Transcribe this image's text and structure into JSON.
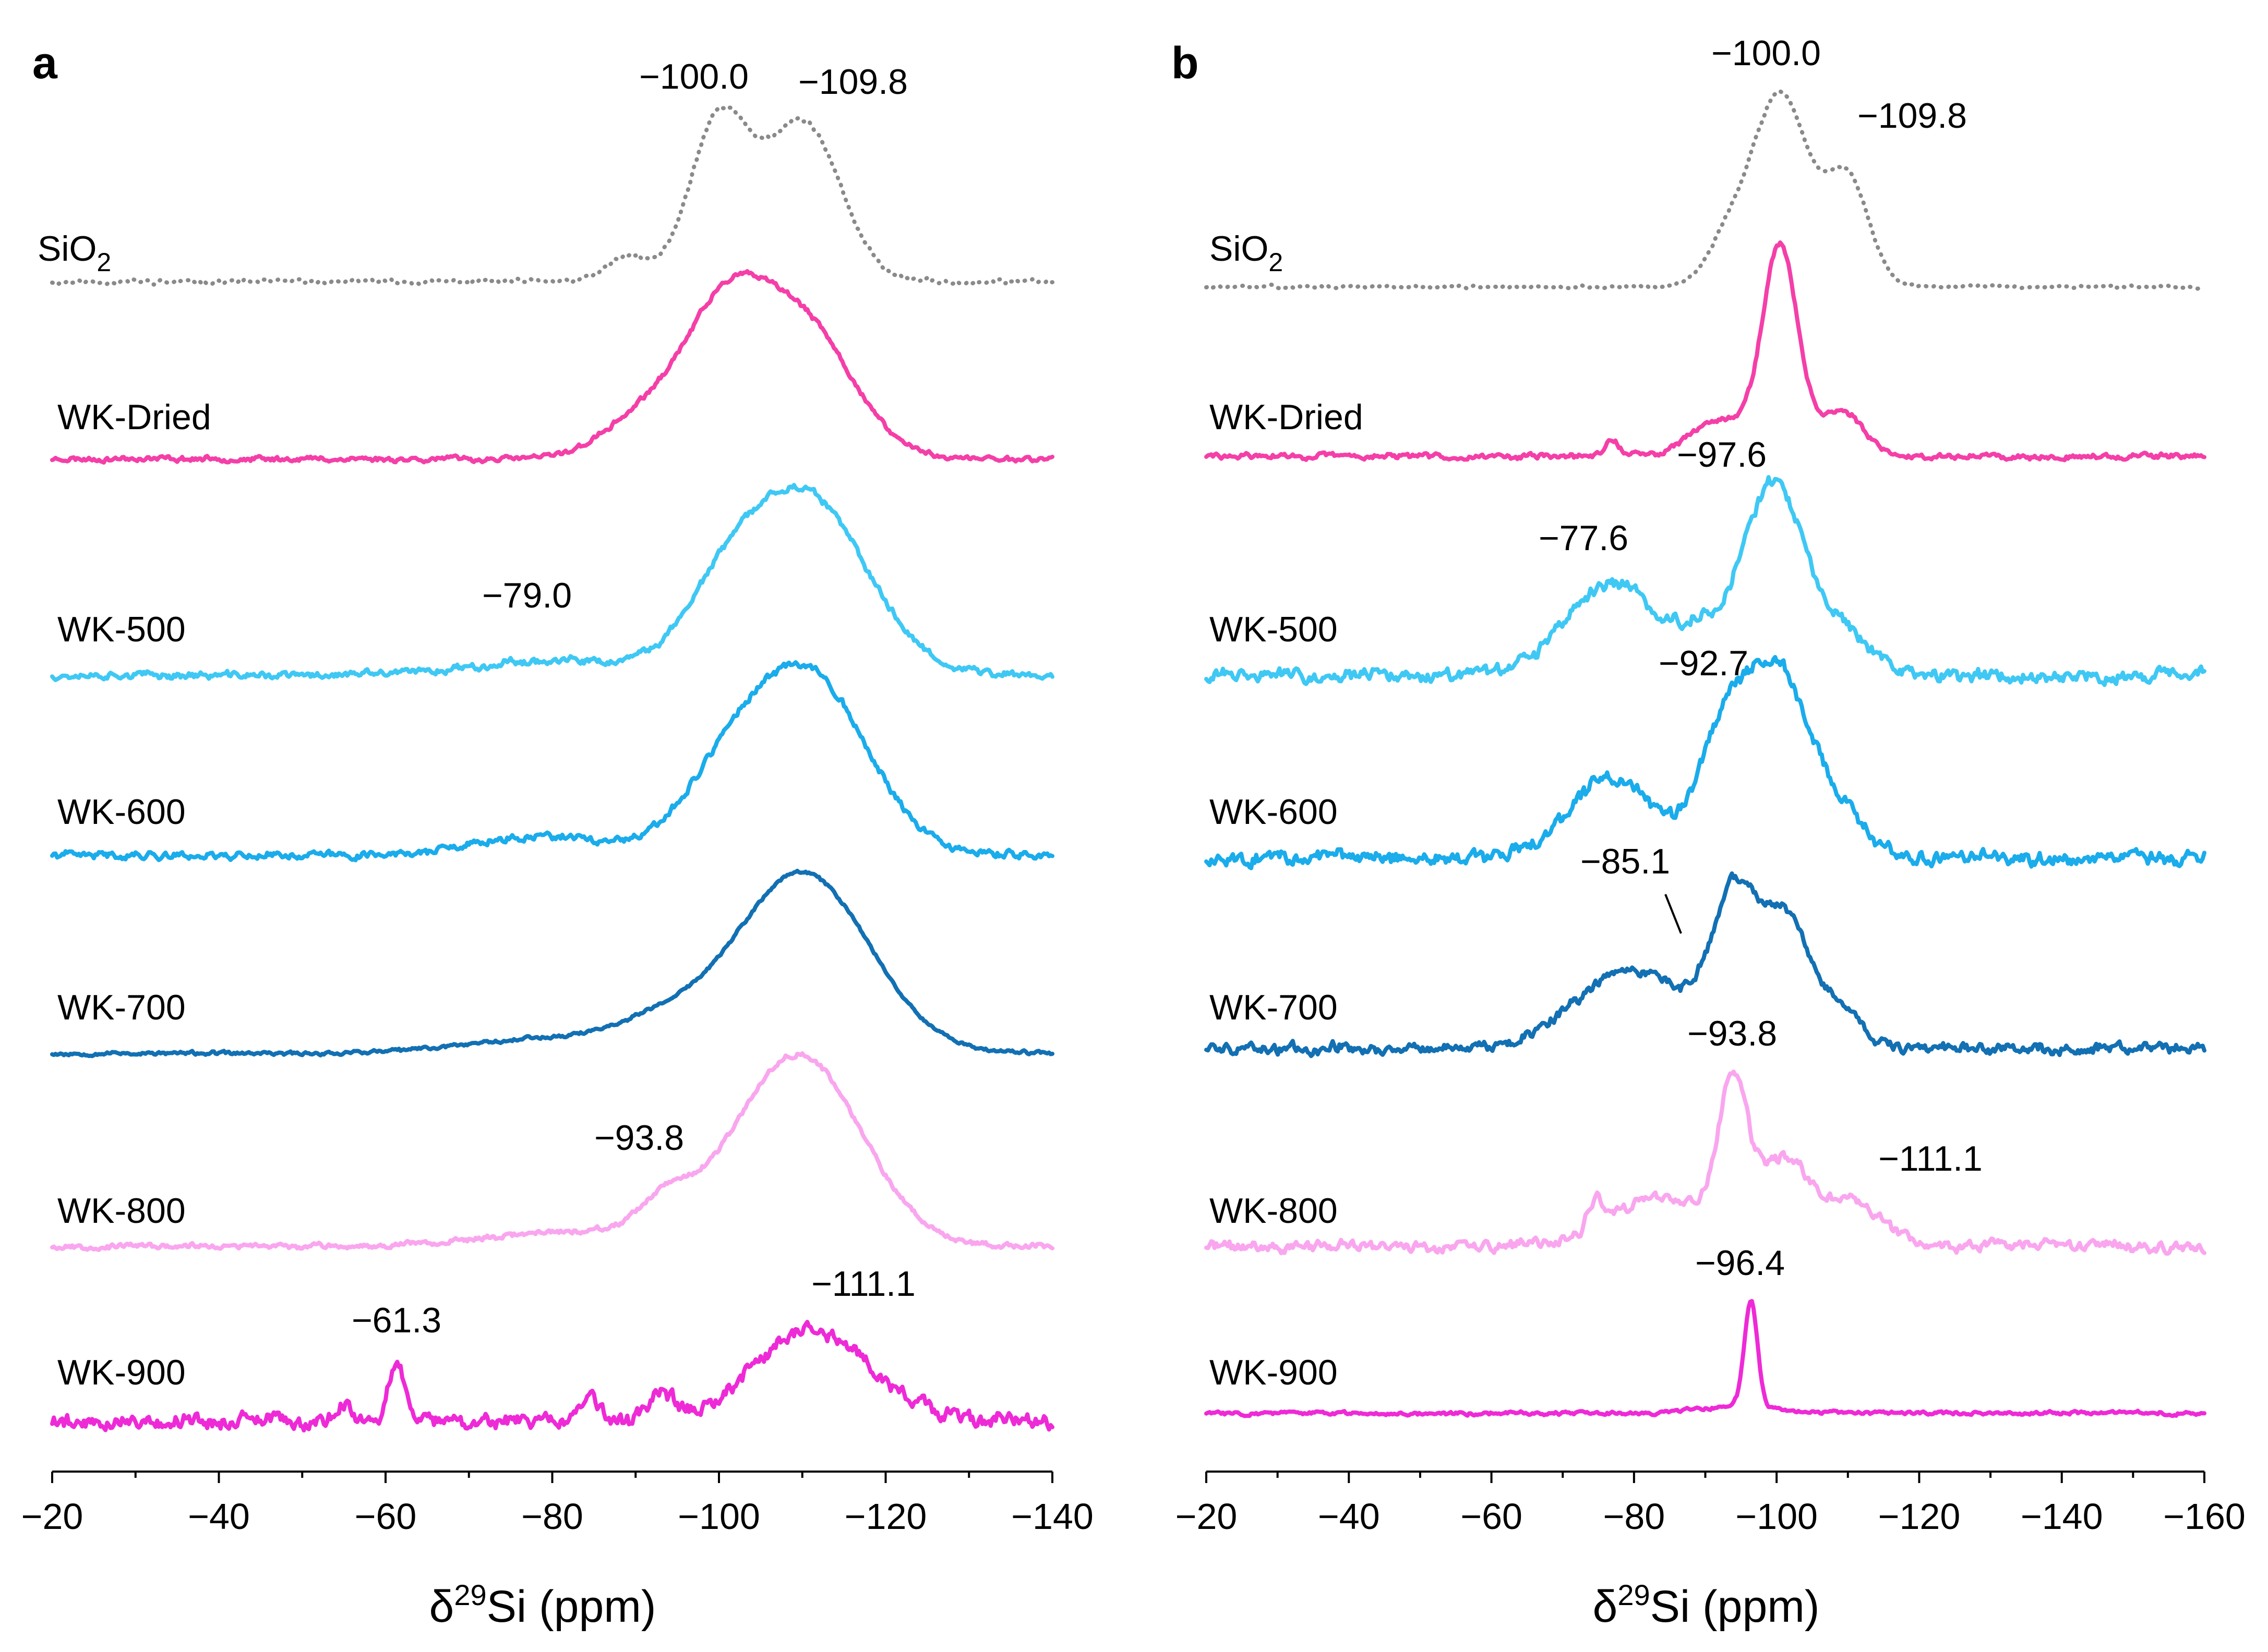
{
  "chart_data": [
    {
      "panel": "a",
      "type": "line",
      "xlabel": "δ29Si (ppm)",
      "xlim": [
        -20,
        -140
      ],
      "ticks": [
        -20,
        -40,
        -60,
        -80,
        -100,
        -120,
        -140
      ],
      "tick_labels": [
        "−20",
        "−40",
        "−60",
        "−80",
        "−100",
        "−120",
        "−140"
      ],
      "series": [
        {
          "name": "SiO2",
          "label_main": "SiO",
          "label_sub": "2",
          "color": "#8a8a8a",
          "style": "dotted",
          "peaks": [
            {
              "c": -100.0,
              "w": 3.5,
              "a": 1.0
            },
            {
              "c": -110.0,
              "w": 4.5,
              "a": 1.0
            },
            {
              "c": -89.0,
              "w": 2.5,
              "a": 0.15
            }
          ],
          "noise": 0.02,
          "seed": 11
        },
        {
          "name": "WK-Dried",
          "label_main": "WK-Dried",
          "color": "#f43fa8",
          "style": "solid",
          "peaks": [
            {
              "c": -100.5,
              "w": 5.0,
              "a": 1.0
            },
            {
              "c": -110.0,
              "w": 6.0,
              "a": 1.0
            },
            {
              "c": -91.0,
              "w": 5.0,
              "a": 0.3
            }
          ],
          "noise": 0.03,
          "seed": 23
        },
        {
          "name": "WK-500",
          "label_main": "WK-500",
          "color": "#3fc8f4",
          "style": "solid",
          "peaks": [
            {
              "c": -110.0,
              "w": 7.5,
              "a": 1.0
            },
            {
              "c": -100.0,
              "w": 5.0,
              "a": 0.25
            },
            {
              "c": -79.0,
              "w": 9.0,
              "a": 0.08
            }
          ],
          "noise": 0.03,
          "seed": 37
        },
        {
          "name": "WK-600",
          "label_main": "WK-600",
          "color": "#1aaceb",
          "style": "solid",
          "peaks": [
            {
              "c": -110.5,
              "w": 7.0,
              "a": 1.0
            },
            {
              "c": -100.0,
              "w": 5.0,
              "a": 0.3
            },
            {
              "c": -79.0,
              "w": 8.0,
              "a": 0.1
            }
          ],
          "noise": 0.03,
          "seed": 41
        },
        {
          "name": "WK-700",
          "label_main": "WK-700",
          "color": "#1270b3",
          "style": "solid",
          "peaks": [
            {
              "c": -110.0,
              "w": 8.0,
              "a": 1.0
            },
            {
              "c": -93.0,
              "w": 6.0,
              "a": 0.15
            },
            {
              "c": -78.0,
              "w": 9.0,
              "a": 0.08
            }
          ],
          "noise": 0.015,
          "seed": 53
        },
        {
          "name": "WK-800",
          "label_main": "WK-800",
          "color": "#f9a6ef",
          "style": "solid",
          "peaks": [
            {
              "c": -109.5,
              "w": 7.5,
              "a": 1.0
            },
            {
              "c": -93.8,
              "w": 3.0,
              "a": 0.15
            },
            {
              "c": -85.0,
              "w": 12.0,
              "a": 0.08
            }
          ],
          "noise": 0.02,
          "seed": 67
        },
        {
          "name": "WK-900",
          "label_main": "WK-900",
          "color": "#ee2ad7",
          "style": "solid",
          "peaks": [
            {
              "c": -111.1,
              "w": 7.0,
              "a": 0.55
            },
            {
              "c": -61.3,
              "w": 1.0,
              "a": 0.35
            },
            {
              "c": -93.0,
              "w": 1.3,
              "a": 0.15
            },
            {
              "c": -84.5,
              "w": 1.3,
              "a": 0.12
            },
            {
              "c": -55.0,
              "w": 1.0,
              "a": 0.1
            }
          ],
          "noise": 0.07,
          "seed": 79
        }
      ],
      "peak_labels": [
        "−100.0",
        "−109.8",
        "−79.0",
        "−93.8",
        "−61.3",
        "−111.1"
      ]
    },
    {
      "panel": "b",
      "type": "line",
      "xlabel": "δ29Si (ppm)",
      "xlim": [
        -20,
        -160
      ],
      "ticks": [
        -20,
        -40,
        -60,
        -80,
        -100,
        -120,
        -140,
        -160
      ],
      "tick_labels": [
        "−20",
        "−40",
        "−60",
        "−80",
        "−100",
        "−120",
        "−140",
        "−160"
      ],
      "series": [
        {
          "name": "SiO2",
          "label_main": "SiO",
          "label_sub": "2",
          "color": "#8a8a8a",
          "style": "dotted",
          "peaks": [
            {
              "c": -100.5,
              "w": 4.0,
              "a": 1.0
            },
            {
              "c": -110.0,
              "w": 3.0,
              "a": 0.55
            },
            {
              "c": -93.0,
              "w": 3.0,
              "a": 0.2
            }
          ],
          "noise": 0.01,
          "seed": 13
        },
        {
          "name": "WK-Dried",
          "label_main": "WK-Dried",
          "color": "#f43fa8",
          "style": "solid",
          "peaks": [
            {
              "c": -100.5,
              "w": 2.5,
              "a": 1.0
            },
            {
              "c": -92.0,
              "w": 4.0,
              "a": 0.18
            },
            {
              "c": -109.0,
              "w": 3.0,
              "a": 0.22
            },
            {
              "c": -77.0,
              "w": 1.0,
              "a": 0.08
            }
          ],
          "noise": 0.02,
          "seed": 29
        },
        {
          "name": "WK-500",
          "label_main": "WK-500",
          "color": "#3fc8f4",
          "style": "solid",
          "peaks": [
            {
              "c": -99.5,
              "w": 4.5,
              "a": 1.0
            },
            {
              "c": -77.0,
              "w": 6.5,
              "a": 0.48
            },
            {
              "c": -89.0,
              "w": 3.0,
              "a": 0.15
            },
            {
              "c": -110.0,
              "w": 3.5,
              "a": 0.2
            }
          ],
          "noise": 0.05,
          "seed": 31
        },
        {
          "name": "WK-600",
          "label_main": "WK-600",
          "color": "#1aaceb",
          "style": "solid",
          "peaks": [
            {
              "c": -100.0,
              "w": 4.0,
              "a": 1.0
            },
            {
              "c": -92.7,
              "w": 3.5,
              "a": 0.7
            },
            {
              "c": -77.0,
              "w": 6.0,
              "a": 0.45
            },
            {
              "c": -108.0,
              "w": 4.0,
              "a": 0.3
            }
          ],
          "noise": 0.06,
          "seed": 43
        },
        {
          "name": "WK-700",
          "label_main": "WK-700",
          "color": "#1270b3",
          "style": "solid",
          "peaks": [
            {
              "c": -94.0,
              "w": 3.0,
              "a": 1.0
            },
            {
              "c": -101.0,
              "w": 3.5,
              "a": 0.95
            },
            {
              "c": -80.0,
              "w": 8.0,
              "a": 0.6
            },
            {
              "c": -109.0,
              "w": 3.0,
              "a": 0.3
            }
          ],
          "noise": 0.06,
          "seed": 59
        },
        {
          "name": "WK-800",
          "label_main": "WK-800",
          "color": "#f9a6ef",
          "style": "solid",
          "peaks": [
            {
              "c": -93.8,
              "w": 2.0,
              "a": 1.0
            },
            {
              "c": -101.0,
              "w": 4.0,
              "a": 0.6
            },
            {
              "c": -84.0,
              "w": 7.0,
              "a": 0.35
            },
            {
              "c": -111.1,
              "w": 4.0,
              "a": 0.3
            },
            {
              "c": -74.5,
              "w": 1.0,
              "a": 0.2
            }
          ],
          "noise": 0.06,
          "seed": 71
        },
        {
          "name": "WK-900",
          "label_main": "WK-900",
          "color": "#ee2ad7",
          "style": "solid",
          "peaks": [
            {
              "c": -96.4,
              "w": 0.9,
              "a": 1.0
            },
            {
              "c": -95.0,
              "w": 5.0,
              "a": 0.07
            }
          ],
          "noise": 0.025,
          "seed": 83
        }
      ],
      "peak_labels": [
        "−100.0",
        "−109.8",
        "−97.6",
        "−77.6",
        "−92.7",
        "−85.1",
        "−93.8",
        "−111.1",
        "−96.4"
      ]
    }
  ]
}
